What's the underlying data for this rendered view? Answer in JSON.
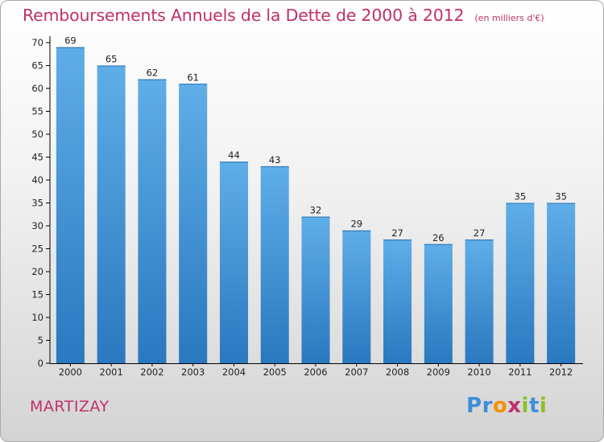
{
  "chart_title": "Remboursements Annuels de la Dette de 2000 à 2012",
  "chart_unit": "(en milliers d'€)",
  "commune": "MARTIZAY",
  "brand": {
    "letters": [
      "P",
      "r",
      "o",
      "x",
      "i",
      "t",
      "i"
    ],
    "colors": [
      "#3d8fd6",
      "#3d8fd6",
      "#f39200",
      "#c0306a",
      "#8cbf26",
      "#3d8fd6",
      "#8cbf26"
    ]
  },
  "colors": {
    "title": "#c0306a",
    "bar_light": "#5faee8",
    "bar_dark": "#2a78bf",
    "axis": "#000000",
    "grid": "#d0d0d0"
  },
  "chart_data": {
    "type": "bar",
    "categories": [
      "2000",
      "2001",
      "2002",
      "2003",
      "2004",
      "2005",
      "2006",
      "2007",
      "2008",
      "2009",
      "2010",
      "2011",
      "2012"
    ],
    "values": [
      69,
      65,
      62,
      61,
      44,
      43,
      32,
      29,
      27,
      26,
      27,
      35,
      35
    ],
    "ylim": [
      0,
      70
    ],
    "yticks": [
      0,
      5,
      10,
      15,
      20,
      25,
      30,
      35,
      40,
      45,
      50,
      55,
      60,
      65,
      70
    ],
    "grid": false,
    "data_labels": true,
    "legend": "none"
  }
}
